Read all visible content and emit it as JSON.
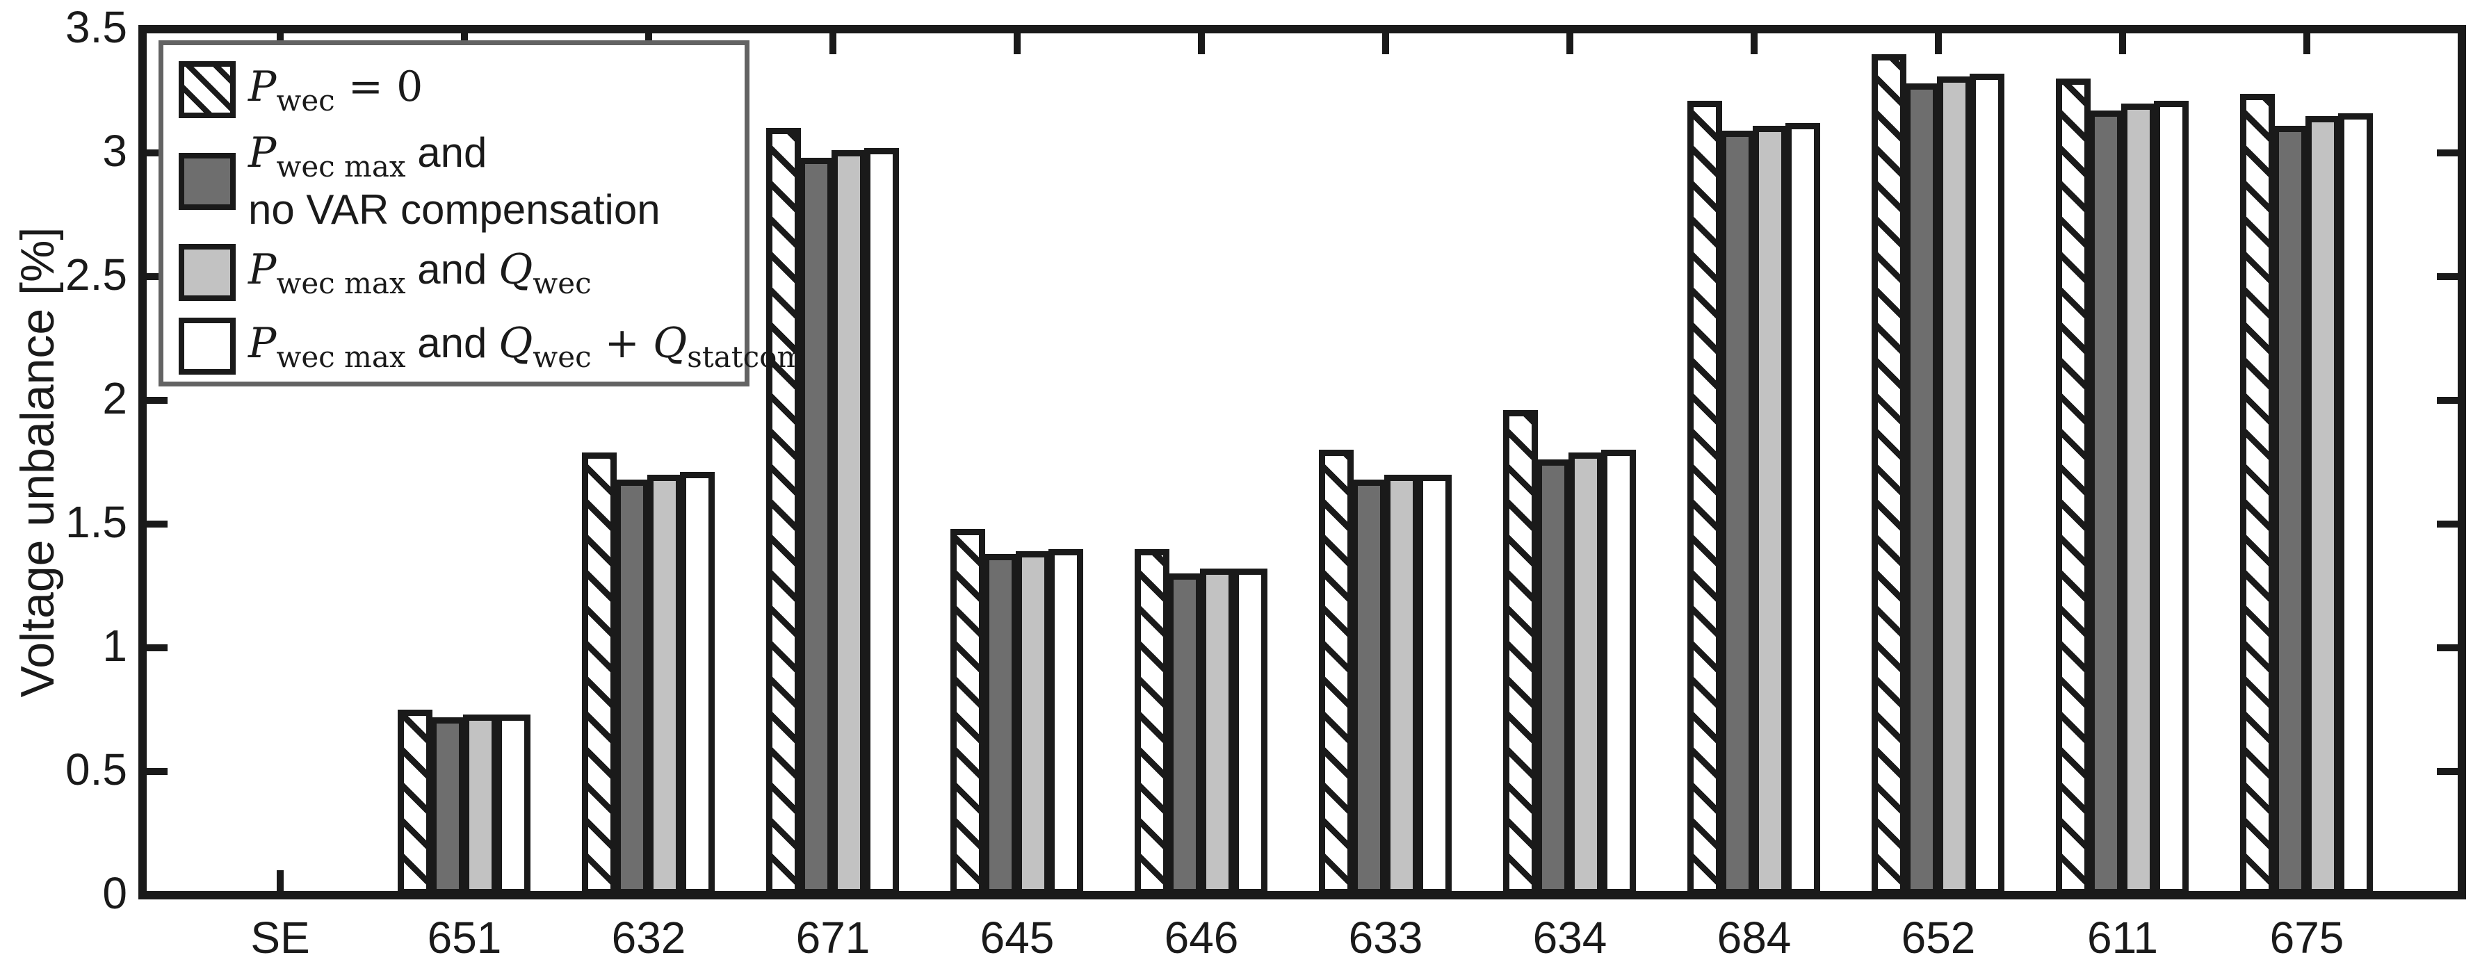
{
  "chart": {
    "ylabel": "Voltage unbalance [%]"
  },
  "chart_data": {
    "type": "bar",
    "title": "",
    "xlabel": "",
    "ylabel": "Voltage unbalance [%]",
    "ylim": [
      0,
      3.5
    ],
    "yticks": [
      "0",
      "0.5",
      "1",
      "1.5",
      "2",
      "2.5",
      "3",
      "3.5"
    ],
    "grid": false,
    "legend_position": "top-left",
    "categories": [
      "SE",
      "651",
      "632",
      "671",
      "645",
      "646",
      "633",
      "634",
      "684",
      "652",
      "611",
      "675"
    ],
    "series": [
      {
        "name": "Pwec = 0",
        "style": "hatched",
        "fill": "black-diagonal-hatch-on-white",
        "values": [
          0,
          0.75,
          1.79,
          3.1,
          1.48,
          1.4,
          1.8,
          1.96,
          3.21,
          3.4,
          3.3,
          3.24
        ]
      },
      {
        "name": "Pwec max and no VAR compensation",
        "style": "darkg",
        "fill": "#6e6e6e",
        "values": [
          0,
          0.72,
          1.68,
          2.98,
          1.38,
          1.3,
          1.68,
          1.76,
          3.09,
          3.28,
          3.17,
          3.11
        ]
      },
      {
        "name": "Pwec max and Qwec",
        "style": "lightg",
        "fill": "#c2c2c2",
        "values": [
          0,
          0.73,
          1.7,
          3.01,
          1.39,
          1.32,
          1.7,
          1.79,
          3.11,
          3.31,
          3.2,
          3.15
        ]
      },
      {
        "name": "Pwec max and Qwec + Qstatcom",
        "style": "whiteb",
        "fill": "#ffffff",
        "values": [
          0,
          0.73,
          1.71,
          3.02,
          1.4,
          1.32,
          1.7,
          1.8,
          3.12,
          3.32,
          3.21,
          3.16
        ]
      }
    ]
  },
  "legend": {
    "items": [
      {
        "label": "Pwec = 0",
        "swatch": "hatched",
        "segments": [
          {
            "t": "var",
            "x": "P"
          },
          {
            "t": "sub",
            "x": "wec"
          },
          {
            "t": "serif",
            "x": " = 0"
          }
        ]
      },
      {
        "label": "Pwec max and no VAR compensation",
        "swatch": "dark",
        "segments": [
          {
            "t": "var",
            "x": "P"
          },
          {
            "t": "sub",
            "x": "wec max"
          },
          {
            "t": "sans",
            "x": " and"
          },
          {
            "t": "br"
          },
          {
            "t": "sans",
            "x": "no VAR compensation"
          }
        ]
      },
      {
        "label": "Pwec max and Qwec",
        "swatch": "light",
        "segments": [
          {
            "t": "var",
            "x": "P"
          },
          {
            "t": "sub",
            "x": "wec max"
          },
          {
            "t": "sans",
            "x": " and "
          },
          {
            "t": "var",
            "x": "Q"
          },
          {
            "t": "sub",
            "x": "wec"
          }
        ]
      },
      {
        "label": "Pwec max and Qwec + Qstatcom",
        "swatch": "white",
        "segments": [
          {
            "t": "var",
            "x": "P"
          },
          {
            "t": "sub",
            "x": "wec max"
          },
          {
            "t": "sans",
            "x": " and "
          },
          {
            "t": "var",
            "x": "Q"
          },
          {
            "t": "sub",
            "x": "wec"
          },
          {
            "t": "serif",
            "x": " + "
          },
          {
            "t": "var",
            "x": "Q"
          },
          {
            "t": "sub",
            "x": "statcom"
          }
        ]
      }
    ],
    "colors": {
      "dark_gray": "#6e6e6e",
      "light_gray": "#c2c2c2",
      "outline": "#1a1a1a",
      "legend_border": "#636363"
    }
  }
}
